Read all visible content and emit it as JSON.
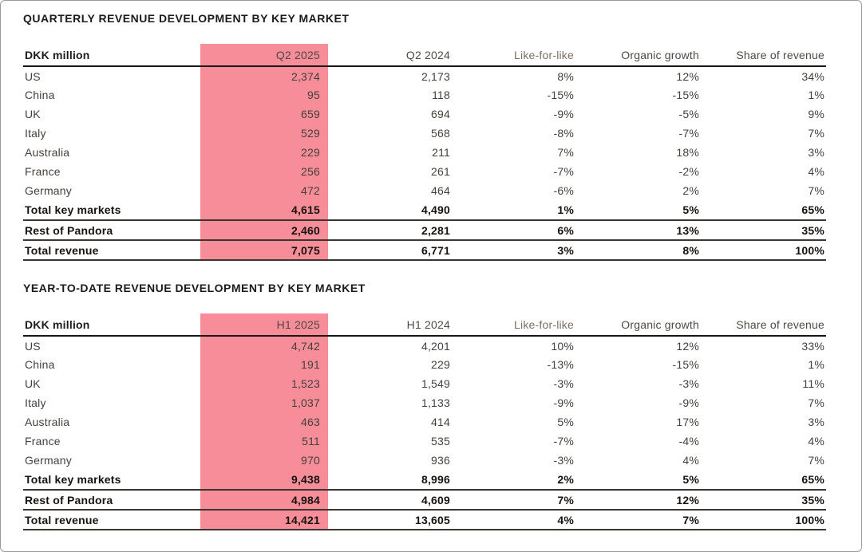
{
  "page": {
    "background": "#ffffff",
    "border_color": "#9b9b9b",
    "highlight_color": "#F68D98",
    "currency_note": "DKK million"
  },
  "tables": [
    {
      "title": "QUARTERLY REVENUE DEVELOPMENT BY KEY MARKET",
      "highlight_column": "Q2 2025",
      "columns": [
        "DKK million",
        "Q2 2025",
        "Q2 2024",
        "Like-for-like",
        "Organic growth",
        "Share of revenue"
      ],
      "rows": [
        {
          "bold": false,
          "cells": [
            "US",
            "2,374",
            "2,173",
            "8%",
            "12%",
            "34%"
          ]
        },
        {
          "bold": false,
          "cells": [
            "China",
            "95",
            "118",
            "-15%",
            "-15%",
            "1%"
          ]
        },
        {
          "bold": false,
          "cells": [
            "UK",
            "659",
            "694",
            "-9%",
            "-5%",
            "9%"
          ]
        },
        {
          "bold": false,
          "cells": [
            "Italy",
            "529",
            "568",
            "-8%",
            "-7%",
            "7%"
          ]
        },
        {
          "bold": false,
          "cells": [
            "Australia",
            "229",
            "211",
            "7%",
            "18%",
            "3%"
          ]
        },
        {
          "bold": false,
          "cells": [
            "France",
            "256",
            "261",
            "-7%",
            "-2%",
            "4%"
          ]
        },
        {
          "bold": false,
          "cells": [
            "Germany",
            "472",
            "464",
            "-6%",
            "2%",
            "7%"
          ]
        },
        {
          "bold": true,
          "cells": [
            "Total key markets",
            "4,615",
            "4,490",
            "1%",
            "5%",
            "65%"
          ]
        },
        {
          "bold": true,
          "cells": [
            "Rest of Pandora",
            "2,460",
            "2,281",
            "6%",
            "13%",
            "35%"
          ]
        },
        {
          "bold": true,
          "cells": [
            "Total revenue",
            "7,075",
            "6,771",
            "3%",
            "8%",
            "100%"
          ]
        }
      ]
    },
    {
      "title": "YEAR-TO-DATE REVENUE DEVELOPMENT BY KEY MARKET",
      "highlight_column": "H1 2025",
      "columns": [
        "DKK million",
        "H1 2025",
        "H1 2024",
        "Like-for-like",
        "Organic growth",
        "Share of revenue"
      ],
      "rows": [
        {
          "bold": false,
          "cells": [
            "US",
            "4,742",
            "4,201",
            "10%",
            "12%",
            "33%"
          ]
        },
        {
          "bold": false,
          "cells": [
            "China",
            "191",
            "229",
            "-13%",
            "-15%",
            "1%"
          ]
        },
        {
          "bold": false,
          "cells": [
            "UK",
            "1,523",
            "1,549",
            "-3%",
            "-3%",
            "11%"
          ]
        },
        {
          "bold": false,
          "cells": [
            "Italy",
            "1,037",
            "1,133",
            "-9%",
            "-9%",
            "7%"
          ]
        },
        {
          "bold": false,
          "cells": [
            "Australia",
            "463",
            "414",
            "5%",
            "17%",
            "3%"
          ]
        },
        {
          "bold": false,
          "cells": [
            "France",
            "511",
            "535",
            "-7%",
            "-4%",
            "4%"
          ]
        },
        {
          "bold": false,
          "cells": [
            "Germany",
            "970",
            "936",
            "-3%",
            "4%",
            "7%"
          ]
        },
        {
          "bold": true,
          "cells": [
            "Total key markets",
            "9,438",
            "8,996",
            "2%",
            "5%",
            "65%"
          ]
        },
        {
          "bold": true,
          "cells": [
            "Rest of Pandora",
            "4,984",
            "4,609",
            "7%",
            "12%",
            "35%"
          ]
        },
        {
          "bold": true,
          "cells": [
            "Total revenue",
            "14,421",
            "13,605",
            "4%",
            "7%",
            "100%"
          ]
        }
      ]
    }
  ]
}
